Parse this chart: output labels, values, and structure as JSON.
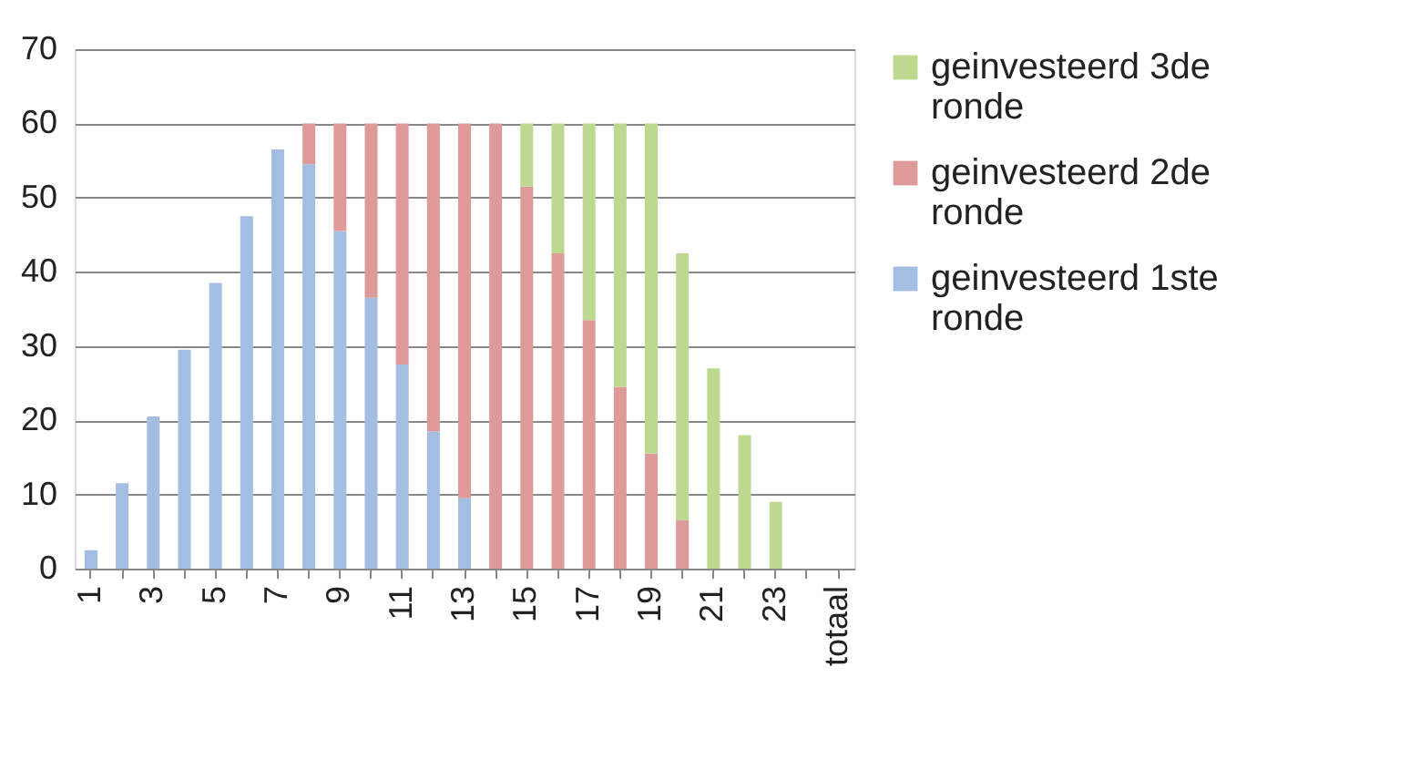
{
  "chart_data": {
    "type": "bar",
    "stacked": true,
    "categories": [
      "1",
      null,
      "3",
      null,
      "5",
      null,
      "7",
      null,
      "9",
      null,
      "11",
      null,
      "13",
      null,
      "15",
      null,
      "17",
      null,
      "19",
      null,
      "21",
      null,
      "23",
      null,
      "totaal"
    ],
    "series": [
      {
        "name": "geinvesteerd 1ste ronde",
        "color": "#a3bde3",
        "values": [
          2.5,
          11.5,
          20.5,
          29.5,
          38.5,
          47.5,
          56.5,
          54.5,
          45.5,
          36.5,
          27.5,
          18.5,
          9.5,
          null,
          null,
          null,
          null,
          null,
          null,
          null,
          null,
          null,
          null,
          null,
          null
        ]
      },
      {
        "name": "geinvesteerd 2de ronde",
        "color": "#de9a99",
        "values": [
          null,
          null,
          null,
          null,
          null,
          null,
          null,
          5.5,
          14.5,
          23.5,
          32.5,
          41.5,
          50.5,
          60,
          51.5,
          42.5,
          33.5,
          24.5,
          15.5,
          6.5,
          null,
          null,
          null,
          null,
          null
        ]
      },
      {
        "name": "geinvesteerd 3de ronde",
        "color": "#bcd98f",
        "values": [
          null,
          null,
          null,
          null,
          null,
          null,
          null,
          null,
          null,
          null,
          null,
          null,
          null,
          null,
          8.5,
          17.5,
          26.5,
          35.5,
          44.5,
          36,
          27,
          18,
          9,
          null,
          null
        ]
      }
    ],
    "ylim": [
      0,
      70
    ],
    "yticks": [
      0,
      10,
      20,
      30,
      40,
      50,
      60,
      70
    ],
    "grid": "y",
    "legend": "right"
  }
}
